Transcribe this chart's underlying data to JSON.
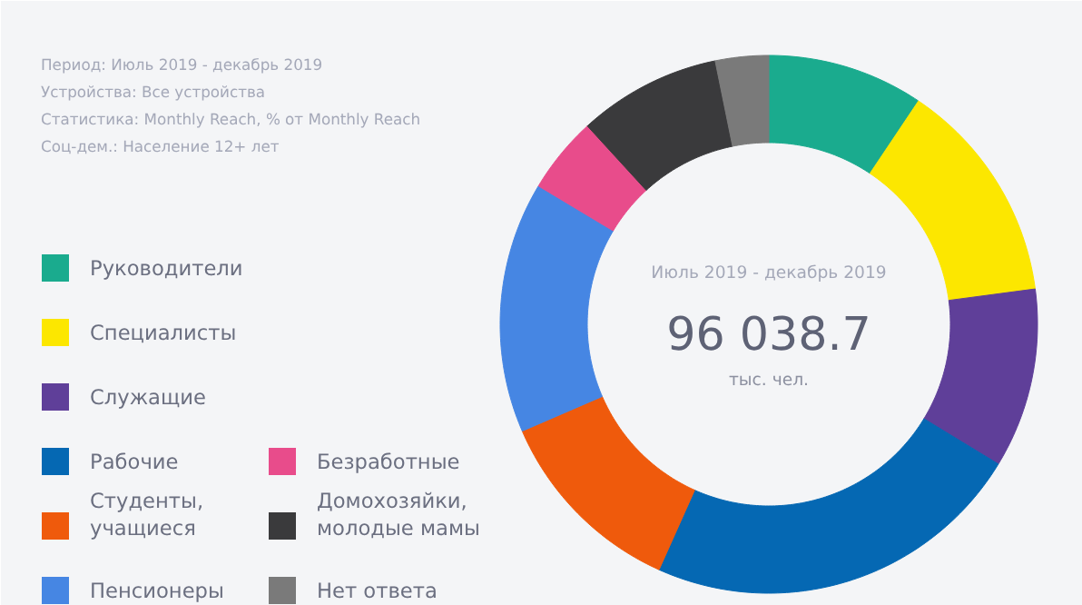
{
  "chart_data": {
    "type": "donut",
    "categories": [
      "Руководители",
      "Специалисты",
      "Служащие",
      "Рабочие",
      "Студенты,\nучащиеся",
      "Пенсионеры",
      "Безработные",
      "Домохозяйки,\nмолодые мамы",
      "Нет ответа"
    ],
    "values": [
      9.4,
      13.5,
      10.8,
      23.0,
      11.8,
      15.1,
      4.6,
      8.6,
      3.2
    ],
    "colors": [
      "#1aab8e",
      "#fce700",
      "#5f3f99",
      "#0568b3",
      "#ef5a0c",
      "#4686e3",
      "#e84c8b",
      "#3a3a3c",
      "#7a7a7a"
    ],
    "legend": "left",
    "annotations": [
      "Период: Июль 2019 - декабрь 2019",
      "Устройства: Все устройства",
      "Статистика: Monthly Reach, % от Monthly Reach",
      "Соц-дем.: Население 12+ лет",
      "Июль 2019 - декабрь 2019",
      "96 038.7",
      "тыс. чел."
    ]
  }
}
